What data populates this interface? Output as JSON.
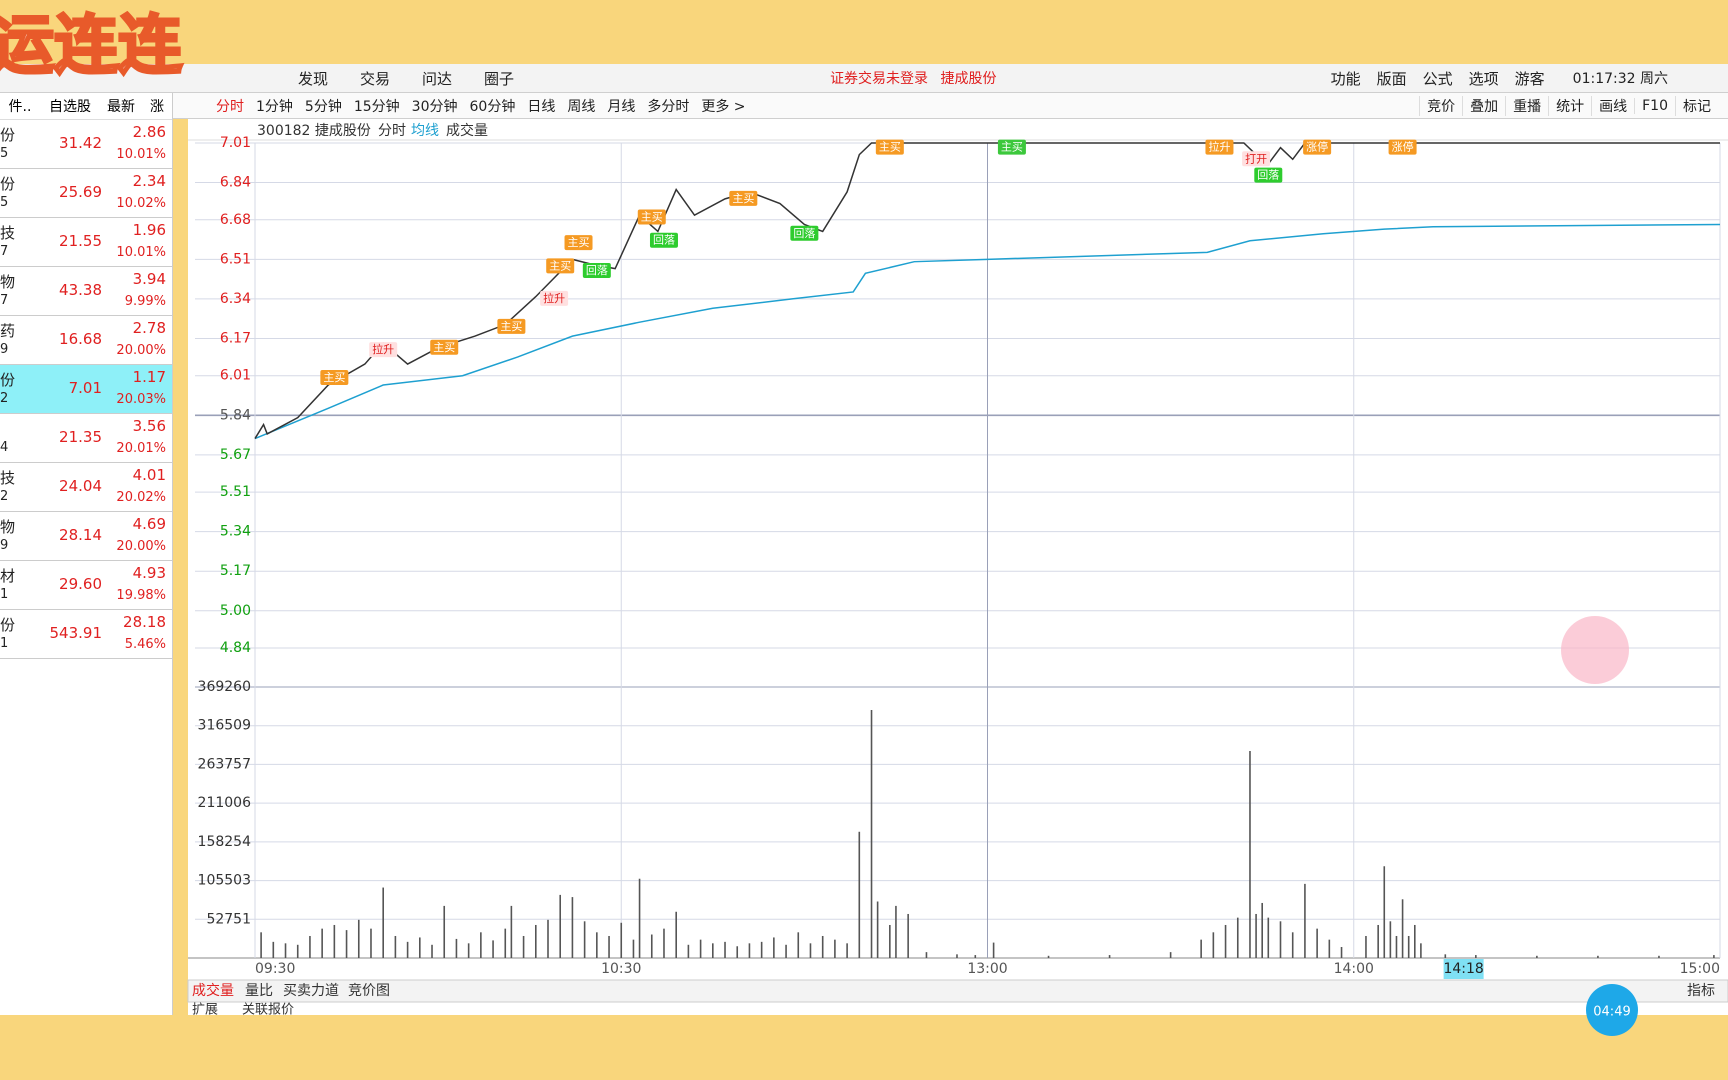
{
  "decor": {
    "watermark": "运连连",
    "timer": "04:49"
  },
  "menu": {
    "left": [
      "发现",
      "交易",
      "问达",
      "圈子"
    ],
    "notice": "证券交易未登录",
    "stock": "捷成股份",
    "right": [
      "功能",
      "版面",
      "公式",
      "选项",
      "游客"
    ],
    "clock": "01:17:32 周六"
  },
  "toolbar": {
    "left": [
      "分时",
      "1分钟",
      "5分钟",
      "15分钟",
      "30分钟",
      "60分钟",
      "日线",
      "周线",
      "月线",
      "多分时",
      "更多 >"
    ],
    "right": [
      "竞价",
      "叠加",
      "重播",
      "统计",
      "画线",
      "F10",
      "标记"
    ]
  },
  "watchlist": {
    "header": [
      "件..",
      "自选股",
      "最新",
      "涨"
    ],
    "rows": [
      {
        "name": "份",
        "code": "5",
        "price": "31.42",
        "change": "2.86",
        "pct": "10.01%"
      },
      {
        "name": "份",
        "code": "5",
        "price": "25.69",
        "change": "2.34",
        "pct": "10.02%"
      },
      {
        "name": "技",
        "code": "7",
        "price": "21.55",
        "change": "1.96",
        "pct": "10.01%"
      },
      {
        "name": "物",
        "code": "7",
        "price": "43.38",
        "change": "3.94",
        "pct": "9.99%"
      },
      {
        "name": "药",
        "code": "9",
        "price": "16.68",
        "change": "2.78",
        "pct": "20.00%"
      },
      {
        "name": "份",
        "code": "2",
        "price": "7.01",
        "change": "1.17",
        "pct": "20.03%",
        "selected": true
      },
      {
        "code": "4",
        "price": "21.35",
        "change": "3.56",
        "pct": "20.01%"
      },
      {
        "name": "技",
        "code": "2",
        "price": "24.04",
        "change": "4.01",
        "pct": "20.02%"
      },
      {
        "name": "物",
        "code": "9",
        "price": "28.14",
        "change": "4.69",
        "pct": "20.00%"
      },
      {
        "name": "材",
        "code": "1",
        "price": "29.60",
        "change": "4.93",
        "pct": "19.98%"
      },
      {
        "name": "份",
        "code": "1",
        "price": "543.91",
        "change": "28.18",
        "pct": "5.46%"
      }
    ]
  },
  "chart": {
    "type": "line",
    "header": [
      "300182 捷成股份",
      "分时",
      "均线",
      "成交量"
    ],
    "xlim": [
      0,
      240
    ],
    "xticks": [
      {
        "value": 0,
        "label": "09:30"
      },
      {
        "value": 60,
        "label": "10:30"
      },
      {
        "value": 120,
        "label": "13:00"
      },
      {
        "value": 180,
        "label": "14:00"
      },
      {
        "value": 240,
        "label": "15:00"
      }
    ],
    "cursor": {
      "value": 198,
      "label": "14:18"
    },
    "ylim": [
      4.84,
      7.01
    ],
    "yticks": [
      {
        "value": 7.01,
        "label": "7.01"
      },
      6.84,
      6.68,
      6.51,
      6.34,
      6.17,
      6.01,
      5.84,
      5.67,
      5.51,
      5.34,
      5.17,
      {
        "value": 5,
        "label": "5.00"
      },
      4.84
    ],
    "prev_close": 5.84,
    "price": {
      "name": "分时",
      "color": "#333333",
      "x": [
        0,
        1.4,
        2,
        7,
        12,
        18,
        21,
        25,
        30,
        36,
        41,
        46,
        52,
        55,
        59,
        63,
        66,
        69,
        72,
        77,
        81,
        86,
        90,
        93,
        97,
        99,
        101,
        162,
        164,
        166,
        168,
        170,
        172,
        240
      ],
      "values": [
        5.74,
        5.8,
        5.76,
        5.83,
        5.97,
        6.06,
        6.15,
        6.06,
        6.13,
        6.18,
        6.23,
        6.35,
        6.51,
        6.49,
        6.47,
        6.7,
        6.63,
        6.81,
        6.7,
        6.77,
        6.8,
        6.75,
        6.66,
        6.63,
        6.8,
        6.96,
        7.01,
        7.01,
        6.96,
        6.92,
        6.99,
        6.94,
        7.01,
        7.01
      ]
    },
    "average": {
      "name": "均线",
      "color": "#1ea0d0",
      "x": [
        0,
        12,
        21,
        34,
        43,
        52,
        63,
        75,
        88,
        98,
        100,
        108,
        120,
        156,
        163,
        175,
        185,
        193,
        240
      ],
      "values": [
        5.74,
        5.87,
        5.97,
        6.01,
        6.09,
        6.18,
        6.24,
        6.3,
        6.34,
        6.37,
        6.45,
        6.5,
        6.51,
        6.54,
        6.59,
        6.62,
        6.64,
        6.65,
        6.66
      ]
    },
    "annotations": [
      {
        "text": "主买",
        "x": 13,
        "y": 6.0,
        "kind": "buy"
      },
      {
        "text": "拉升",
        "x": 21,
        "y": 6.12,
        "kind": "rise"
      },
      {
        "text": "主买",
        "x": 31,
        "y": 6.13,
        "kind": "buy"
      },
      {
        "text": "主买",
        "x": 42,
        "y": 6.22,
        "kind": "buy"
      },
      {
        "text": "拉升",
        "x": 49,
        "y": 6.34,
        "kind": "rise"
      },
      {
        "text": "主买",
        "x": 50,
        "y": 6.48,
        "kind": "buy"
      },
      {
        "text": "主买",
        "x": 53,
        "y": 6.58,
        "kind": "buy"
      },
      {
        "text": "回落",
        "x": 56,
        "y": 6.46,
        "kind": "fall"
      },
      {
        "text": "主买",
        "x": 65,
        "y": 6.69,
        "kind": "buy"
      },
      {
        "text": "回落",
        "x": 67,
        "y": 6.59,
        "kind": "fall"
      },
      {
        "text": "主买",
        "x": 80,
        "y": 6.77,
        "kind": "buy"
      },
      {
        "text": "回落",
        "x": 90,
        "y": 6.62,
        "kind": "fall"
      },
      {
        "text": "主买",
        "x": 104,
        "y": 6.99,
        "kind": "buy"
      },
      {
        "text": "主买",
        "x": 124,
        "y": 6.99,
        "kind": "buy-green"
      },
      {
        "text": "拉升",
        "x": 158,
        "y": 6.99,
        "kind": "buy"
      },
      {
        "text": "打开",
        "x": 164,
        "y": 6.94,
        "kind": "rise"
      },
      {
        "text": "回落",
        "x": 166,
        "y": 6.87,
        "kind": "fall"
      },
      {
        "text": "涨停",
        "x": 174,
        "y": 6.99,
        "kind": "buy"
      },
      {
        "text": "涨停",
        "x": 188,
        "y": 6.99,
        "kind": "buy"
      }
    ],
    "volume": {
      "name": "成交量",
      "color": "#555555",
      "ylim": [
        0,
        369260
      ],
      "yticks": [
        52751,
        105503,
        158254,
        211006,
        263757,
        316509,
        369260
      ],
      "x": [
        1,
        3,
        5,
        7,
        9,
        11,
        13,
        15,
        17,
        19,
        21,
        23,
        25,
        27,
        29,
        31,
        33,
        35,
        37,
        39,
        41,
        42,
        44,
        46,
        48,
        50,
        52,
        54,
        56,
        58,
        60,
        62,
        63,
        65,
        67,
        69,
        71,
        73,
        75,
        77,
        79,
        81,
        83,
        85,
        87,
        89,
        91,
        93,
        95,
        97,
        99,
        101,
        102,
        104,
        105,
        107,
        110,
        115,
        118,
        121,
        130,
        140,
        150,
        155,
        157,
        159,
        161,
        163,
        164,
        165,
        166,
        168,
        170,
        172,
        174,
        176,
        178,
        182,
        184,
        185,
        186,
        187,
        188,
        189,
        190,
        191,
        195,
        200,
        210,
        220,
        230,
        239
      ],
      "values": [
        35000,
        22000,
        20000,
        18000,
        30000,
        40000,
        45000,
        38000,
        52000,
        40000,
        96000,
        30000,
        22000,
        28000,
        18000,
        71000,
        26000,
        20000,
        35000,
        24000,
        40000,
        71000,
        30000,
        45000,
        52000,
        86000,
        83000,
        50000,
        35000,
        30000,
        48000,
        25000,
        108000,
        32000,
        40000,
        63000,
        18000,
        25000,
        20000,
        22000,
        16000,
        20000,
        22000,
        28000,
        18000,
        35000,
        20000,
        30000,
        25000,
        20000,
        172000,
        338000,
        77000,
        45000,
        71000,
        60000,
        8000,
        5000,
        4000,
        21000,
        3000,
        4000,
        8000,
        25000,
        35000,
        45000,
        55000,
        282000,
        60000,
        75000,
        55000,
        50000,
        35000,
        101000,
        40000,
        25000,
        15000,
        30000,
        45000,
        125000,
        50000,
        30000,
        80000,
        30000,
        45000,
        20000,
        5000,
        4000,
        3000,
        3000,
        3000,
        4000
      ]
    },
    "tabs": [
      "成交量",
      "量比",
      "买卖力道",
      "竞价图"
    ],
    "indicator": "指标",
    "footer": [
      "扩展",
      "关联报价"
    ]
  }
}
